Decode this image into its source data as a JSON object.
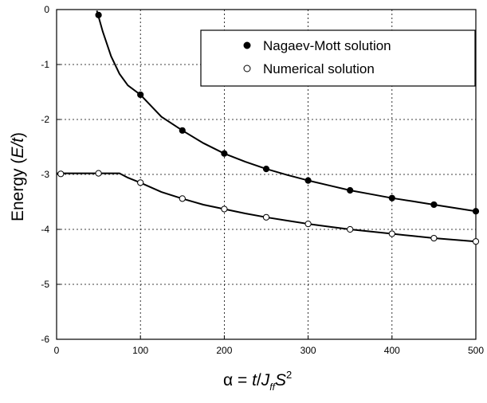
{
  "chart_data": {
    "type": "line",
    "xlabel": {
      "prefix": "α = ",
      "t": "t",
      "slash": "/",
      "J": "J",
      "sub": "ff",
      "S": "S",
      "sup": "2"
    },
    "ylabel": {
      "prefix": "Energy  (",
      "var": "E/t",
      "suffix": ")"
    },
    "xlim": [
      0,
      500
    ],
    "ylim": [
      -6,
      0
    ],
    "xticks": [
      0,
      100,
      200,
      300,
      400,
      500
    ],
    "yticks": [
      0,
      -1,
      -2,
      -3,
      -4,
      -5,
      -6
    ],
    "grid": true,
    "legend_position": "top-right",
    "series": [
      {
        "name": "Nagaev-Mott solution",
        "marker": "filled-circle",
        "color": "#000000",
        "points": [
          [
            50,
            -0.1
          ],
          [
            100,
            -1.55
          ],
          [
            150,
            -2.2
          ],
          [
            200,
            -2.62
          ],
          [
            250,
            -2.9
          ],
          [
            300,
            -3.11
          ],
          [
            350,
            -3.29
          ],
          [
            400,
            -3.43
          ],
          [
            450,
            -3.55
          ],
          [
            500,
            -3.67
          ]
        ],
        "curve": [
          [
            48,
            -0.02
          ],
          [
            55,
            -0.4
          ],
          [
            65,
            -0.85
          ],
          [
            75,
            -1.17
          ],
          [
            85,
            -1.38
          ],
          [
            100,
            -1.55
          ],
          [
            125,
            -1.95
          ],
          [
            150,
            -2.2
          ],
          [
            175,
            -2.43
          ],
          [
            200,
            -2.62
          ],
          [
            225,
            -2.77
          ],
          [
            250,
            -2.9
          ],
          [
            275,
            -3.01
          ],
          [
            300,
            -3.11
          ],
          [
            325,
            -3.2
          ],
          [
            350,
            -3.29
          ],
          [
            375,
            -3.36
          ],
          [
            400,
            -3.43
          ],
          [
            425,
            -3.49
          ],
          [
            450,
            -3.55
          ],
          [
            475,
            -3.61
          ],
          [
            500,
            -3.67
          ]
        ]
      },
      {
        "name": "Numerical solution",
        "marker": "open-circle",
        "color": "#000000",
        "points": [
          [
            5,
            -2.99
          ],
          [
            50,
            -2.98
          ],
          [
            100,
            -3.15
          ],
          [
            150,
            -3.44
          ],
          [
            200,
            -3.63
          ],
          [
            250,
            -3.78
          ],
          [
            300,
            -3.9
          ],
          [
            350,
            -4.0
          ],
          [
            400,
            -4.08
          ],
          [
            450,
            -4.16
          ],
          [
            500,
            -4.22
          ]
        ],
        "curve": [
          [
            0,
            -2.98
          ],
          [
            75,
            -2.98
          ],
          [
            85,
            -3.06
          ],
          [
            100,
            -3.15
          ],
          [
            125,
            -3.32
          ],
          [
            150,
            -3.44
          ],
          [
            175,
            -3.55
          ],
          [
            200,
            -3.63
          ],
          [
            225,
            -3.71
          ],
          [
            250,
            -3.78
          ],
          [
            275,
            -3.84
          ],
          [
            300,
            -3.9
          ],
          [
            325,
            -3.95
          ],
          [
            350,
            -4.0
          ],
          [
            375,
            -4.04
          ],
          [
            400,
            -4.08
          ],
          [
            425,
            -4.12
          ],
          [
            450,
            -4.16
          ],
          [
            475,
            -4.19
          ],
          [
            500,
            -4.22
          ]
        ]
      }
    ]
  }
}
